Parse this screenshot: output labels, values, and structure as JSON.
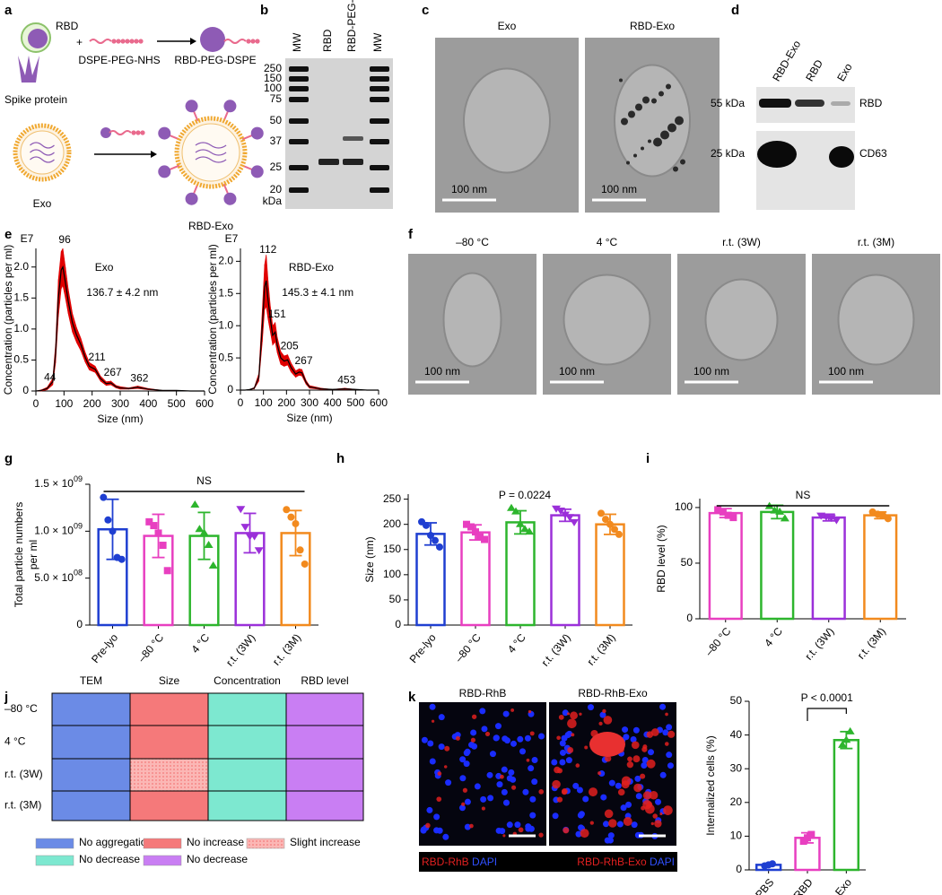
{
  "panel_labels": [
    "a",
    "b",
    "c",
    "d",
    "e",
    "f",
    "g",
    "h",
    "i",
    "j",
    "k"
  ],
  "panel_a": {
    "rbd": "RBD",
    "plus": "+",
    "linker": "DSPE-PEG-NHS",
    "conjugate": "RBD-PEG-DSPE",
    "spike": "Spike protein",
    "exo": "Exo",
    "rbd_exo": "RBD-Exo"
  },
  "panel_b": {
    "lanes": [
      "MW",
      "RBD",
      "RBD-PEG-DSPE",
      "MW"
    ],
    "markers": [
      250,
      150,
      100,
      75,
      50,
      37,
      25,
      20
    ],
    "unit": "kDa"
  },
  "panel_c": {
    "titles": [
      "Exo",
      "RBD-Exo"
    ],
    "scale_bars": [
      "100 nm",
      "100 nm"
    ]
  },
  "panel_d": {
    "lanes": [
      "RBD-Exo",
      "RBD",
      "Exo"
    ],
    "sizes": [
      "55 kDa",
      "25 kDa"
    ],
    "targets": [
      "RBD",
      "CD63"
    ]
  },
  "panel_f": {
    "titles": [
      "–80 °C",
      "4 °C",
      "r.t. (3W)",
      "r.t. (3M)"
    ],
    "scale_bars": [
      "100 nm",
      "100 nm",
      "100 nm",
      "100 nm"
    ]
  },
  "panel_j": {
    "columns": [
      "TEM",
      "Size",
      "Concentration",
      "RBD level"
    ],
    "rows": [
      "–80 °C",
      "4 °C",
      "r.t. (3W)",
      "r.t. (3M)"
    ],
    "legend": [
      {
        "label": "No aggregation",
        "color": "#6b8be6"
      },
      {
        "label": "No increase",
        "color": "#f5797a"
      },
      {
        "label": "Slight increase",
        "color": "#f5797a",
        "pattern": "dots"
      },
      {
        "label": "No decrease",
        "color": "#7de8d0"
      },
      {
        "label": "No decrease",
        "color": "#c97ef3"
      }
    ],
    "cells": [
      [
        0,
        1,
        3,
        4
      ],
      [
        0,
        1,
        3,
        4
      ],
      [
        0,
        2,
        3,
        4
      ],
      [
        0,
        1,
        3,
        4
      ]
    ]
  },
  "panel_k": {
    "images": [
      "RBD-RhB",
      "RBD-RhB-Exo"
    ],
    "captions": [
      [
        "RBD-RhB",
        "DAPI"
      ],
      [
        "RBD-RhB-Exo",
        "DAPI"
      ]
    ]
  },
  "chart_data": [
    {
      "type": "line",
      "title": "Exo",
      "annotation": "136.7 ± 4.2 nm",
      "scale_label": "E7",
      "x_label": "Size (nm)",
      "y_label": "Concentration (particles per ml)",
      "x": [
        0,
        20,
        40,
        60,
        70,
        80,
        90,
        96,
        105,
        115,
        130,
        145,
        160,
        175,
        190,
        211,
        230,
        250,
        267,
        285,
        300,
        330,
        362,
        400,
        450,
        500,
        550,
        600
      ],
      "values": [
        0,
        0.01,
        0.04,
        0.15,
        0.6,
        1.5,
        1.95,
        2.0,
        1.75,
        1.45,
        1.1,
        0.9,
        0.75,
        0.55,
        0.4,
        0.35,
        0.2,
        0.12,
        0.13,
        0.07,
        0.05,
        0.04,
        0.06,
        0.03,
        0.01,
        0.01,
        0,
        0
      ],
      "errors": [
        0,
        0.01,
        0.02,
        0.05,
        0.15,
        0.3,
        0.3,
        0.3,
        0.25,
        0.2,
        0.15,
        0.12,
        0.1,
        0.08,
        0.06,
        0.05,
        0.04,
        0.03,
        0.03,
        0.02,
        0.02,
        0.01,
        0.02,
        0.01,
        0,
        0,
        0,
        0
      ],
      "color": "#000000",
      "band_color": "#e00000",
      "peak_color": "#1f3fd1",
      "peak_labels": [
        44,
        96,
        211,
        267,
        362
      ],
      "xlim": [
        0,
        600
      ],
      "xticks": [
        0,
        100,
        200,
        300,
        400,
        500,
        600
      ],
      "ylim": [
        0,
        2.3
      ],
      "yticks": [
        0,
        0.5,
        {
          "value": 1,
          "label": "1.0"
        },
        1.5,
        {
          "value": 2,
          "label": "2.0"
        }
      ]
    },
    {
      "type": "line",
      "title": "RBD-Exo",
      "annotation": "145.3 ± 4.1 nm",
      "scale_label": "E7",
      "x_label": "Size (nm)",
      "y_label": "Concentration (particles per ml)",
      "x": [
        0,
        20,
        40,
        60,
        80,
        95,
        105,
        112,
        120,
        130,
        140,
        151,
        160,
        175,
        190,
        205,
        220,
        240,
        255,
        267,
        285,
        300,
        350,
        400,
        453,
        500,
        550,
        600
      ],
      "values": [
        0,
        0,
        0.01,
        0.03,
        0.2,
        1.0,
        1.6,
        1.7,
        1.4,
        1.1,
        0.85,
        0.9,
        0.7,
        0.5,
        0.45,
        0.47,
        0.35,
        0.25,
        0.28,
        0.27,
        0.12,
        0.05,
        0.02,
        0.01,
        0.02,
        0.01,
        0,
        0
      ],
      "errors": [
        0,
        0,
        0,
        0.01,
        0.06,
        0.25,
        0.35,
        0.4,
        0.3,
        0.2,
        0.15,
        0.15,
        0.12,
        0.1,
        0.08,
        0.08,
        0.07,
        0.05,
        0.05,
        0.05,
        0.03,
        0.02,
        0.01,
        0,
        0.01,
        0,
        0,
        0
      ],
      "color": "#000000",
      "band_color": "#e00000",
      "peak_color": "#1f3fd1",
      "peak_labels": [
        112,
        151,
        205,
        267,
        453
      ],
      "xlim": [
        0,
        600
      ],
      "xticks": [
        0,
        100,
        200,
        300,
        400,
        500,
        600
      ],
      "ylim": [
        0,
        2.2
      ],
      "yticks": [
        0,
        0.5,
        {
          "value": 1,
          "label": "1.0"
        },
        1.5,
        {
          "value": 2,
          "label": "2.0"
        }
      ]
    },
    {
      "type": "bar",
      "y_label": [
        "Total particle numbers",
        "per ml"
      ],
      "annotation": "NS",
      "categories": [
        "Pre-lyo",
        "–80 °C",
        "4 °C",
        "r.t. (3W)",
        "r.t. (3M)"
      ],
      "values": [
        1020000000,
        950000000,
        950000000,
        980000000,
        980000000
      ],
      "errors": [
        320000000,
        230000000,
        250000000,
        210000000,
        240000000
      ],
      "points": [
        [
          1360000000,
          1120000000,
          1000000000,
          720000000,
          700000000
        ],
        [
          1100000000,
          1060000000,
          980000000,
          850000000,
          580000000
        ],
        [
          1280000000,
          1020000000,
          980000000,
          850000000,
          630000000
        ],
        [
          1240000000,
          1050000000,
          950000000,
          950000000,
          800000000
        ],
        [
          1230000000,
          1150000000,
          1080000000,
          800000000,
          650000000
        ]
      ],
      "colors": [
        "#1f3fd1",
        "#e83fc0",
        "#2db52d",
        "#9b30d9",
        "#f28a1e"
      ],
      "markers": [
        "circle",
        "square",
        "triangle",
        "triangle-down",
        "circle"
      ],
      "ylim": [
        0,
        1500000000
      ],
      "yticks": [
        0,
        {
          "value": 500000000,
          "label": "5.0 × 10",
          "exponent": "08"
        },
        {
          "value": 1000000000,
          "label": "1.0 × 10",
          "exponent": "09"
        },
        {
          "value": 1500000000,
          "label": "1.5 × 10",
          "exponent": "09"
        }
      ]
    },
    {
      "type": "bar",
      "y_label": [
        "Size (nm)"
      ],
      "annotation": "P = 0.0224",
      "categories": [
        "Pre-lyo",
        "–80 °C",
        "4 °C",
        "r.t. (3W)",
        "r.t. (3M)"
      ],
      "values": [
        181,
        184,
        204,
        218,
        200
      ],
      "errors": [
        22,
        15,
        23,
        12,
        20
      ],
      "points": [
        [
          205,
          198,
          178,
          168,
          155
        ],
        [
          200,
          195,
          185,
          175,
          170
        ],
        [
          232,
          225,
          200,
          190,
          185
        ],
        [
          232,
          228,
          220,
          215,
          205
        ],
        [
          222,
          210,
          200,
          190,
          180
        ]
      ],
      "colors": [
        "#1f3fd1",
        "#e83fc0",
        "#2db52d",
        "#9b30d9",
        "#f28a1e"
      ],
      "markers": [
        "circle",
        "square",
        "triangle",
        "triangle-down",
        "circle"
      ],
      "ylim": [
        0,
        260
      ],
      "yticks": [
        0,
        50,
        100,
        150,
        200,
        250
      ]
    },
    {
      "type": "bar",
      "y_label": [
        "RBD level (%)"
      ],
      "annotation": "NS",
      "categories": [
        "–80 °C",
        "4 °C",
        "r.t. (3W)",
        "r.t. (3M)"
      ],
      "values": [
        95,
        96,
        91,
        93
      ],
      "errors": [
        4,
        6,
        3,
        3
      ],
      "points": [
        [
          98,
          96,
          93,
          91
        ],
        [
          101,
          97,
          96,
          90
        ],
        [
          93,
          92,
          91,
          89
        ],
        [
          96,
          94,
          93,
          90
        ]
      ],
      "colors": [
        "#e83fc0",
        "#2db52d",
        "#9b30d9",
        "#f28a1e"
      ],
      "markers": [
        "square",
        "triangle",
        "triangle-down",
        "circle"
      ],
      "ylim": [
        0,
        108
      ],
      "yticks": [
        0,
        50,
        100
      ]
    },
    {
      "type": "bar",
      "y_label": [
        "Internalized cells (%)"
      ],
      "annotation": "P < 0.0001",
      "categories": [
        "PBS",
        "RBD",
        "RBD-Exo"
      ],
      "values": [
        1.5,
        9.5,
        38.5
      ],
      "errors": [
        0.3,
        1.5,
        2.5
      ],
      "points": [
        [
          1.2,
          1.5,
          1.8
        ],
        [
          8.5,
          9.5,
          10.5
        ],
        [
          37,
          38.5,
          41
        ]
      ],
      "colors": [
        "#1f3fd1",
        "#e83fc0",
        "#2db52d"
      ],
      "markers": [
        "circle",
        "square",
        "triangle"
      ],
      "ylim": [
        0,
        50
      ],
      "yticks": [
        0,
        10,
        20,
        30,
        40,
        50
      ]
    }
  ]
}
